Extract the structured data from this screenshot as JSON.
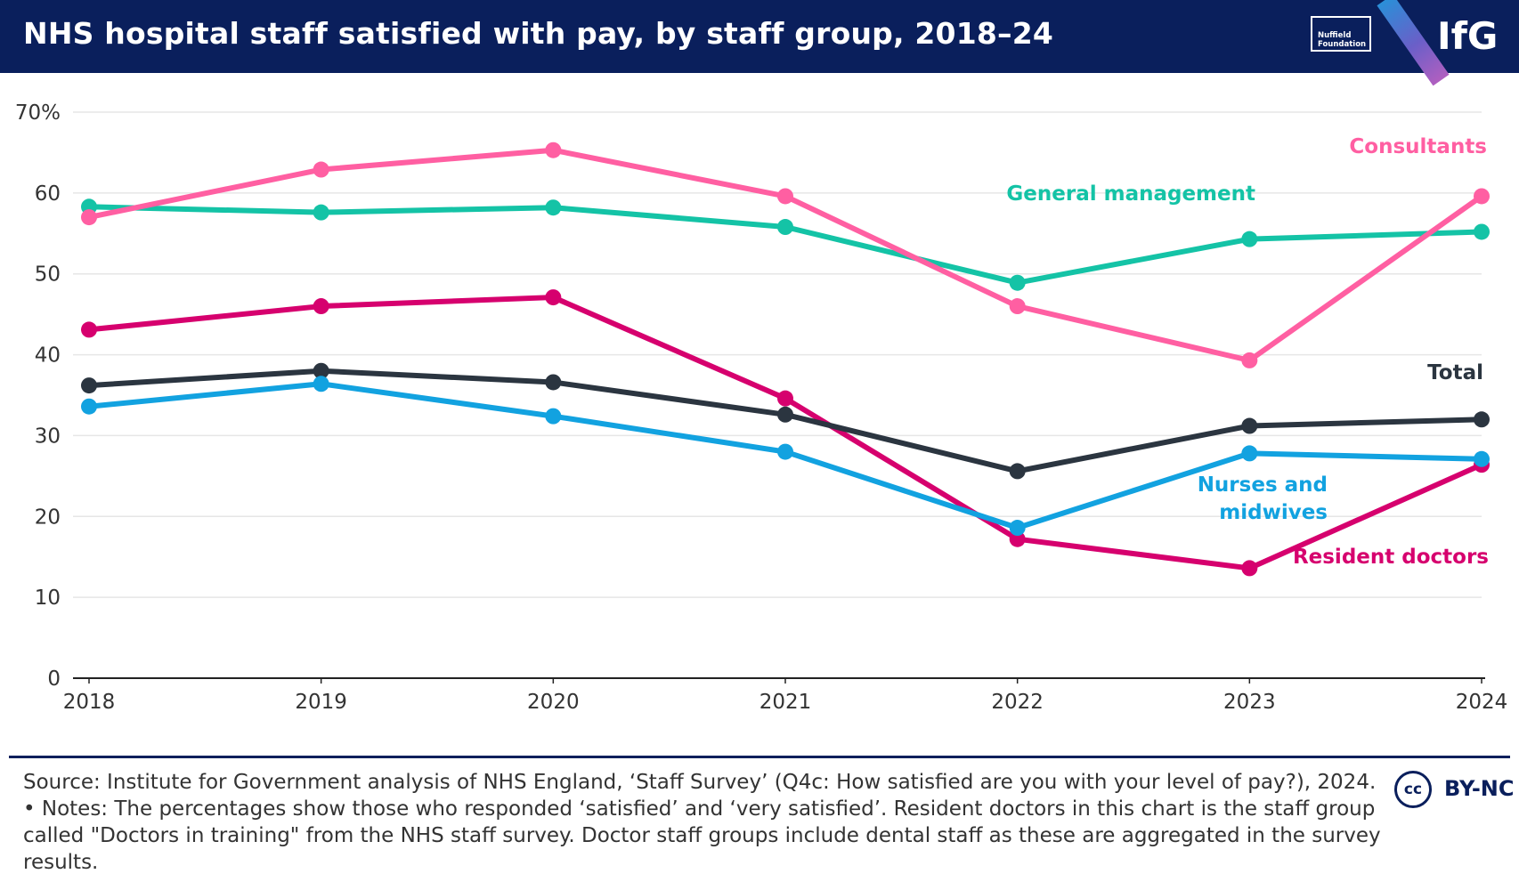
{
  "header": {
    "title": "NHS hospital staff satisfied with pay, by staff group, 2018–24",
    "partner_logo": "Nuffield Foundation",
    "brand": "IfG"
  },
  "chart_data": {
    "type": "line",
    "title": "NHS hospital staff satisfied with pay, by staff group, 2018–24",
    "xlabel": "",
    "ylabel": "",
    "categories": [
      "2018",
      "2019",
      "2020",
      "2021",
      "2022",
      "2023",
      "2024"
    ],
    "ylim": [
      0,
      70
    ],
    "yticks": [
      0,
      10,
      20,
      30,
      40,
      50,
      60,
      70
    ],
    "ytick_labels": [
      "0",
      "10",
      "20",
      "30",
      "40",
      "50",
      "60",
      "70%"
    ],
    "grid": true,
    "series": [
      {
        "name": "General management",
        "color": "#14c3a6",
        "values": [
          58.3,
          57.6,
          58.2,
          55.8,
          48.9,
          54.3,
          55.2
        ]
      },
      {
        "name": "Consultants",
        "color": "#ff5fa2",
        "values": [
          57.0,
          62.9,
          65.3,
          59.6,
          46.0,
          39.3,
          59.6
        ]
      },
      {
        "name": "Resident doctors",
        "color": "#d6006e",
        "values": [
          43.1,
          46.0,
          47.1,
          34.6,
          17.2,
          13.6,
          26.4
        ]
      },
      {
        "name": "Total",
        "color": "#2b3540",
        "values": [
          36.2,
          38.0,
          36.6,
          32.6,
          25.6,
          31.2,
          32.0
        ]
      },
      {
        "name": "Nurses and midwives",
        "color": "#12a2e0",
        "values": [
          33.6,
          36.4,
          32.4,
          28.0,
          18.6,
          27.8,
          27.1
        ]
      }
    ]
  },
  "labels": {
    "consultants": "Consultants",
    "general_management": "General management",
    "total": "Total",
    "nurses_line1": "Nurses and",
    "nurses_line2": "midwives",
    "resident_doctors": "Resident doctors"
  },
  "footer": {
    "source": "Source: Institute for Government analysis of NHS England, ‘Staff Survey’ (Q4c: How satisfied are you with your level of pay?), 2024. • Notes: The percentages show those who responded ‘satisfied’ and ‘very satisfied’. Resident doctors in this chart is the staff group called \"Doctors in training\" from the NHS staff survey. Doctor staff groups include dental staff as these are aggregated in the survey results.",
    "license_badge": "cc",
    "license": "BY-NC"
  }
}
